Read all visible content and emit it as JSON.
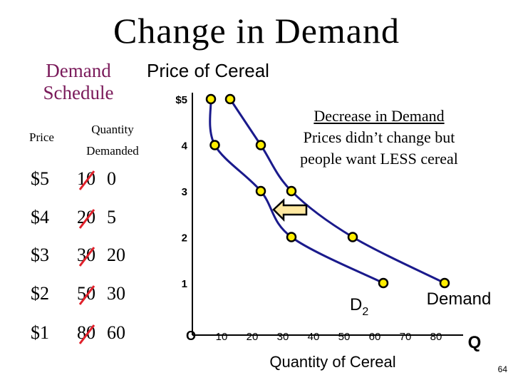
{
  "slide": {
    "title": "Change in Demand",
    "page_number": "64"
  },
  "schedule": {
    "title": "Demand Schedule",
    "col_price": "Price",
    "col_quantity": "Quantity Demanded",
    "rows": [
      {
        "price": "$5",
        "old_qty": "10",
        "new_qty": "0"
      },
      {
        "price": "$4",
        "old_qty": "20",
        "new_qty": "5"
      },
      {
        "price": "$3",
        "old_qty": "30",
        "new_qty": "20"
      },
      {
        "price": "$2",
        "old_qty": "50",
        "new_qty": "30"
      },
      {
        "price": "$1",
        "old_qty": "80",
        "new_qty": "60"
      }
    ],
    "strike_color": "#e0202a"
  },
  "chart_data": {
    "type": "line",
    "title": "Price of Cereal",
    "xlabel": "Quantity of Cereal",
    "ylabel": "",
    "x_axis_end_label": "Q",
    "origin_label": "O",
    "x_ticks": [
      10,
      20,
      30,
      40,
      50,
      60,
      70,
      80
    ],
    "y_ticks": [
      "$5",
      "4",
      "3",
      "2",
      "1"
    ],
    "y_tick_values": [
      5,
      4,
      3,
      2,
      1
    ],
    "xlim": [
      0,
      80
    ],
    "ylim": [
      0,
      5
    ],
    "series": [
      {
        "name": "Demand",
        "x": [
          10,
          20,
          30,
          50,
          80
        ],
        "y": [
          5,
          4,
          3,
          2,
          1
        ]
      },
      {
        "name": "D2",
        "x": [
          0,
          5,
          20,
          30,
          60
        ],
        "y": [
          5,
          4,
          3,
          2,
          1
        ]
      }
    ],
    "curve_color": "#1a1a8c",
    "point_fill": "#ffee00",
    "annotation": {
      "heading": "Decrease in Demand",
      "line2": "Prices didn’t change but",
      "line3": "people want LESS cereal"
    },
    "arrow_direction": "left",
    "arrow_fill": "#ffe8a0"
  }
}
